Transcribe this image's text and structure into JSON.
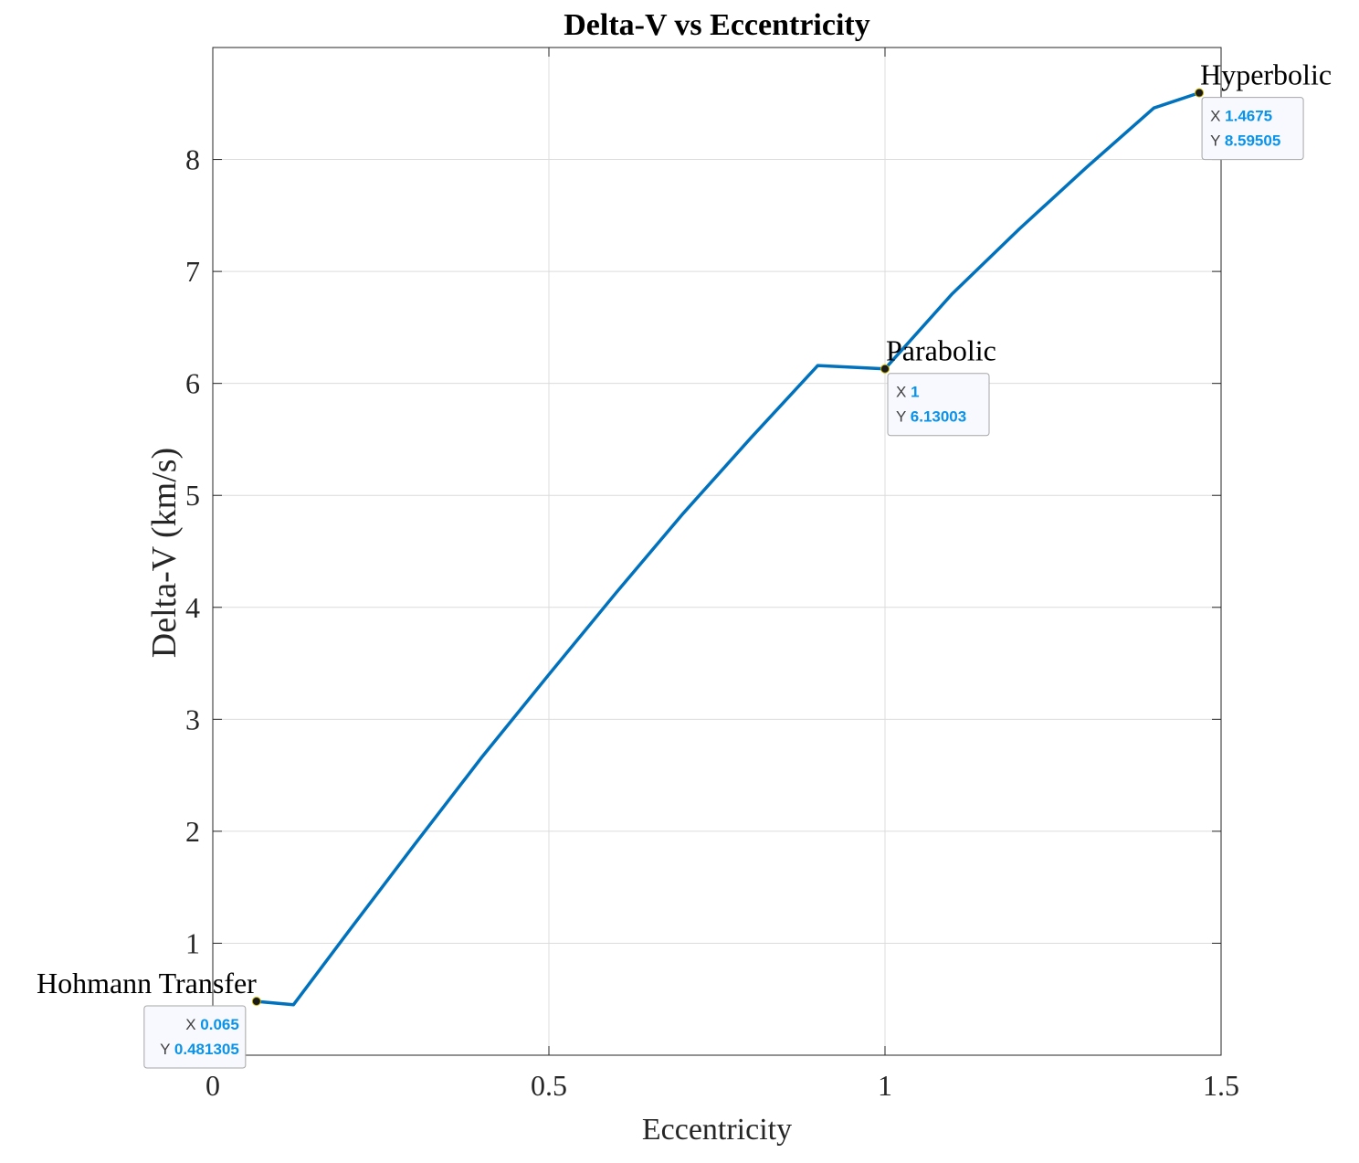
{
  "chart_data": {
    "type": "line",
    "title": "Delta-V vs Eccentricity",
    "xlabel": "Eccentricity",
    "ylabel": "Delta-V (km/s)",
    "xlim": [
      0,
      1.5
    ],
    "ylim": [
      0,
      9
    ],
    "xticks": [
      0,
      0.5,
      1,
      1.5
    ],
    "xtick_labels": [
      "0",
      "0.5",
      "1",
      "1.5"
    ],
    "yticks": [
      1,
      2,
      3,
      4,
      5,
      6,
      7,
      8
    ],
    "ytick_labels": [
      "1",
      "2",
      "3",
      "4",
      "5",
      "6",
      "7",
      "8"
    ],
    "grid": true,
    "series": [
      {
        "color": "#0072BD",
        "x": [
          0.065,
          0.12,
          0.2,
          0.3,
          0.4,
          0.5,
          0.6,
          0.7,
          0.8,
          0.9,
          1.0,
          1.1,
          1.2,
          1.3,
          1.4,
          1.4675
        ],
        "y": [
          0.481,
          0.45,
          1.09,
          1.88,
          2.66,
          3.4,
          4.13,
          4.84,
          5.51,
          6.16,
          6.13,
          6.8,
          7.38,
          7.93,
          8.46,
          8.595
        ]
      }
    ],
    "datatips": [
      {
        "label": "Hohmann Transfer",
        "x": 0.065,
        "y": 0.481305,
        "x_text": "0.065",
        "y_text": "0.481305"
      },
      {
        "label": "Parabolic",
        "x": 1,
        "y": 6.13003,
        "x_text": "1",
        "y_text": "6.13003"
      },
      {
        "label": "Hyperbolic",
        "x": 1.4675,
        "y": 8.59505,
        "x_text": "1.4675",
        "y_text": "8.59505"
      }
    ],
    "datatip_x_prefix": "X",
    "datatip_y_prefix": "Y",
    "colors": {
      "line": "#0072BD",
      "datatip_value": "#0A93E8",
      "grid": "#DCDCDC",
      "axis": "#262626"
    }
  }
}
